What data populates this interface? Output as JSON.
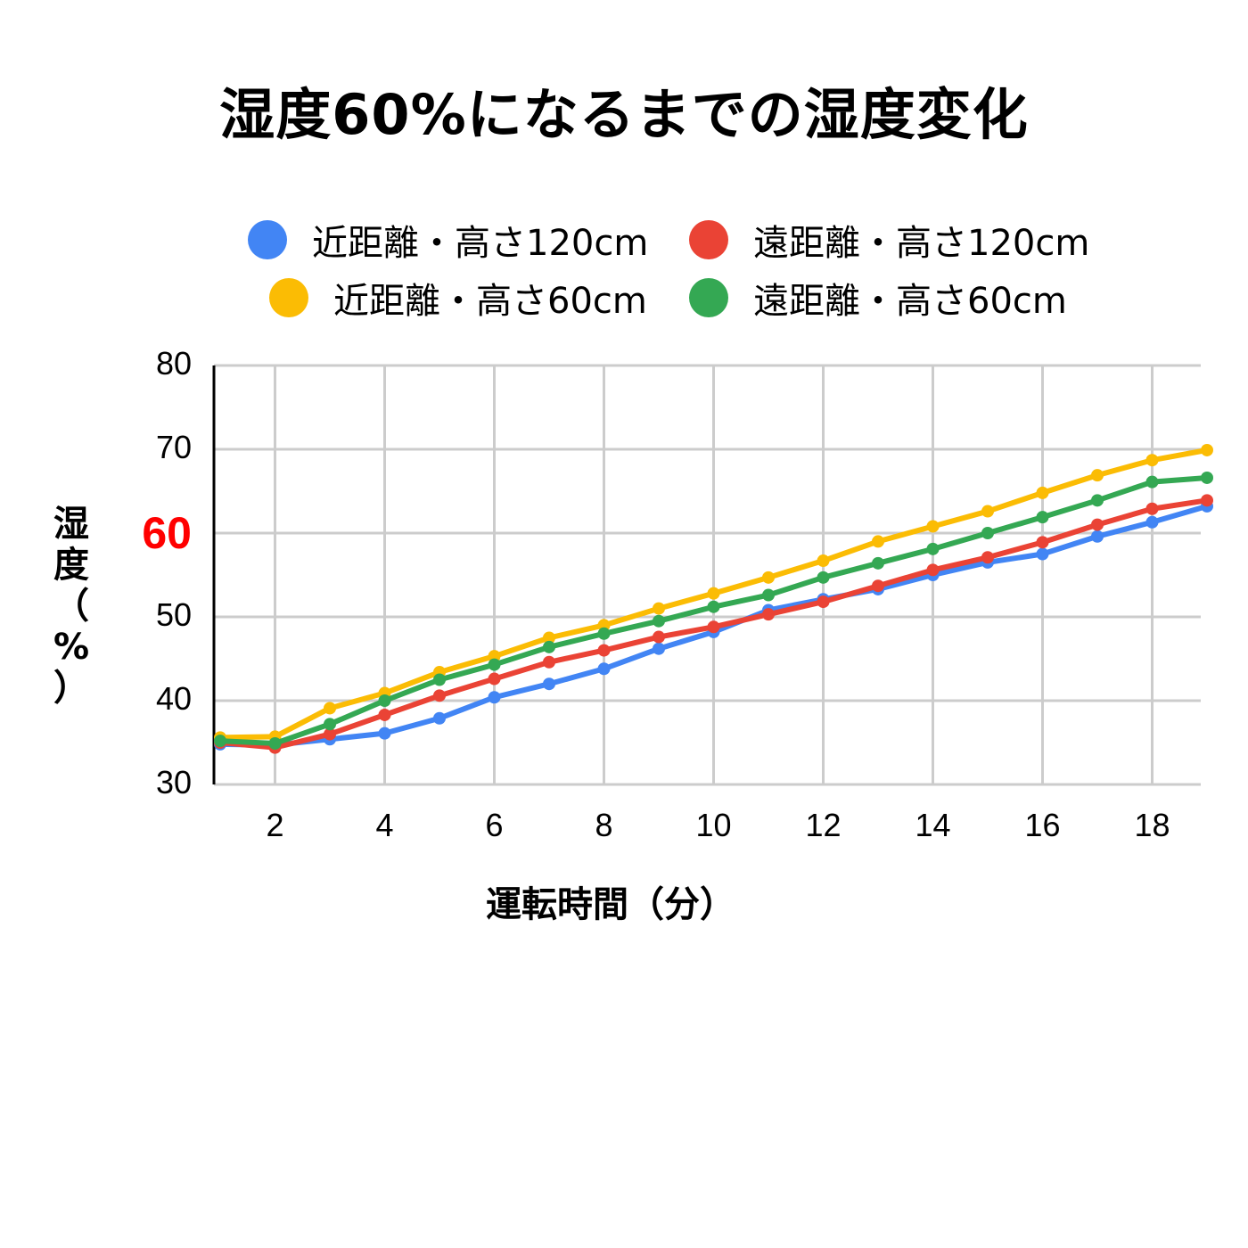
{
  "chart_data": {
    "type": "line",
    "title": "湿度60%になるまでの湿度変化",
    "xlabel": "運転時間（分）",
    "ylabel": [
      "湿",
      "度",
      "（",
      "%",
      "）"
    ],
    "ylim": [
      30,
      80
    ],
    "xlim": [
      1,
      19
    ],
    "yticks": [
      "30",
      "40",
      "50",
      "60",
      "70",
      "80"
    ],
    "highlight_ytick": "60",
    "highlight_color": "#ff0000",
    "xticks": [
      "2",
      "4",
      "6",
      "8",
      "10",
      "12",
      "14",
      "16",
      "18"
    ],
    "grid": true,
    "legend_position": "top",
    "x": [
      1,
      2,
      3,
      4,
      5,
      6,
      7,
      8,
      9,
      10,
      11,
      12,
      13,
      14,
      15,
      16,
      17,
      18,
      19
    ],
    "series": [
      {
        "name": "近距離・高さ120cm",
        "color": "#4285f4",
        "values": [
          34.8,
          34.7,
          35.4,
          36.1,
          37.9,
          40.4,
          42.0,
          43.8,
          46.2,
          48.2,
          50.8,
          52.1,
          53.3,
          55.0,
          56.5,
          57.5,
          59.6,
          61.3,
          63.2
        ]
      },
      {
        "name": "遠距離・高さ120cm",
        "color": "#ea4335",
        "values": [
          35.0,
          34.4,
          36.0,
          38.3,
          40.6,
          42.6,
          44.6,
          46.0,
          47.6,
          48.8,
          50.3,
          51.8,
          53.7,
          55.6,
          57.1,
          58.9,
          61.0,
          62.9,
          63.9
        ]
      },
      {
        "name": "近距離・高さ60cm",
        "color": "#fbbc04",
        "values": [
          35.6,
          35.7,
          39.1,
          40.9,
          43.4,
          45.3,
          47.5,
          49.0,
          51.0,
          52.8,
          54.7,
          56.7,
          59.0,
          60.8,
          62.6,
          64.8,
          66.9,
          68.7,
          69.9
        ]
      },
      {
        "name": "遠距離・高さ60cm",
        "color": "#34a853",
        "values": [
          35.2,
          34.9,
          37.2,
          40.0,
          42.5,
          44.3,
          46.4,
          48.0,
          49.5,
          51.2,
          52.6,
          54.7,
          56.4,
          58.1,
          60.0,
          61.9,
          63.9,
          66.1,
          66.6
        ]
      }
    ]
  }
}
